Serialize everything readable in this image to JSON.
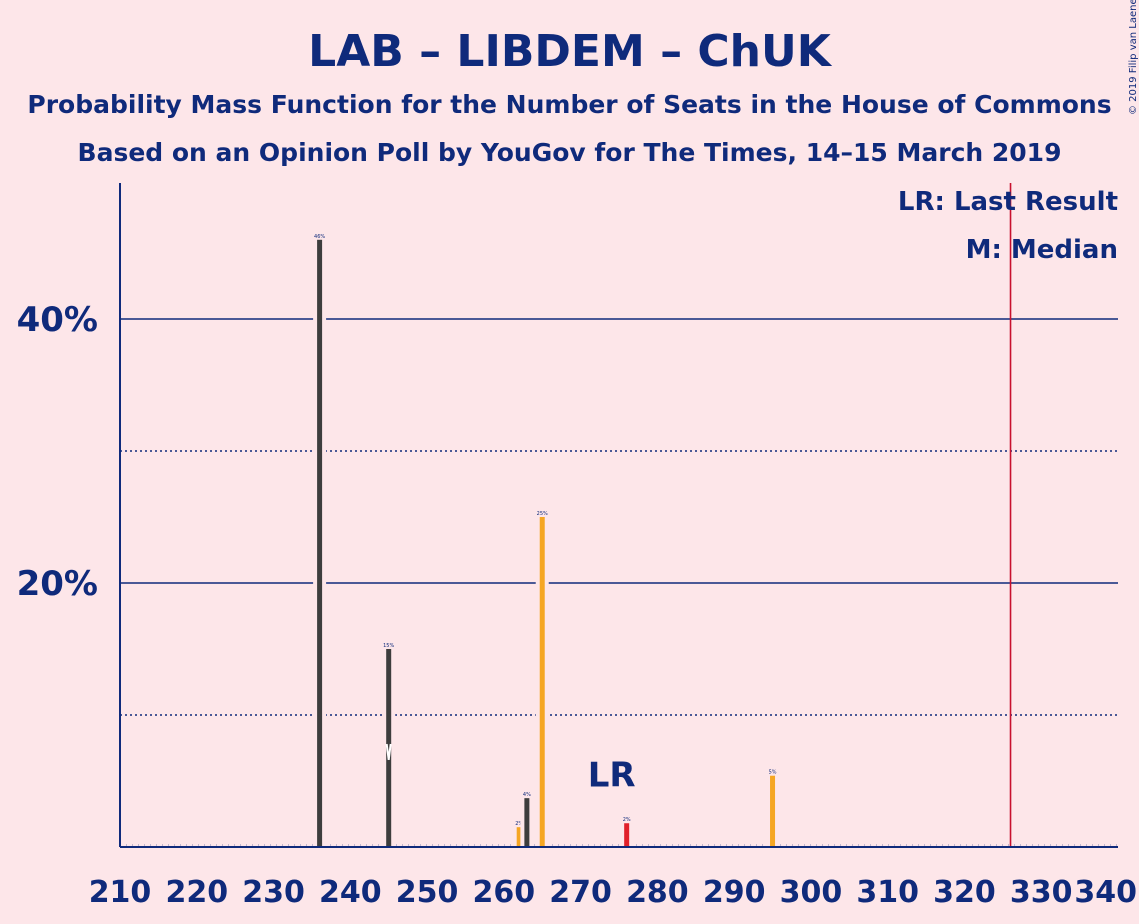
{
  "title": "LAB – LIBDEM – ChUK",
  "subtitle1": "Probability Mass Function for the Number of Seats in the House of Commons",
  "subtitle2": "Based on an Opinion Poll by YouGov for The Times, 14–15 March 2019",
  "copyright": "© 2019 Filip van Laenen",
  "legend": {
    "last_result": "LR: Last Result",
    "median": "M: Median"
  },
  "lr_marker_label": "LR",
  "colors": {
    "background": "#fde6e9",
    "text": "#0f2a7b",
    "bar_default": "#3d3d3d",
    "bar_highlight": "#f5a623",
    "bar_last_result": "#e0202a",
    "majority_line": "#c8102e"
  },
  "chart_data": {
    "type": "bar",
    "xlabel": "",
    "ylabel": "",
    "xlim": [
      210,
      340
    ],
    "ylim": [
      0,
      50
    ],
    "xticks": [
      "210",
      "220",
      "230",
      "240",
      "250",
      "260",
      "270",
      "280",
      "290",
      "300",
      "310",
      "320",
      "330",
      "340"
    ],
    "yticks_labeled": [
      {
        "value": 20,
        "label": "20%"
      },
      {
        "value": 40,
        "label": "40%"
      }
    ],
    "ygrid_minor": [
      10,
      30
    ],
    "median": 245,
    "last_result": 276,
    "majority_line": 326,
    "bars": [
      {
        "seats": 236,
        "value": 46,
        "label": "46%",
        "color": "dark"
      },
      {
        "seats": 245,
        "value": 15,
        "label": "15%",
        "color": "dark"
      },
      {
        "seats": 262,
        "value": 1.5,
        "label": "2%",
        "color": "orange"
      },
      {
        "seats": 263,
        "value": 3.7,
        "label": "4%",
        "color": "dark"
      },
      {
        "seats": 265,
        "value": 25,
        "label": "25%",
        "color": "orange"
      },
      {
        "seats": 276,
        "value": 1.8,
        "label": "2%",
        "color": "red"
      },
      {
        "seats": 295,
        "value": 5.4,
        "label": "5%",
        "color": "orange"
      }
    ]
  }
}
